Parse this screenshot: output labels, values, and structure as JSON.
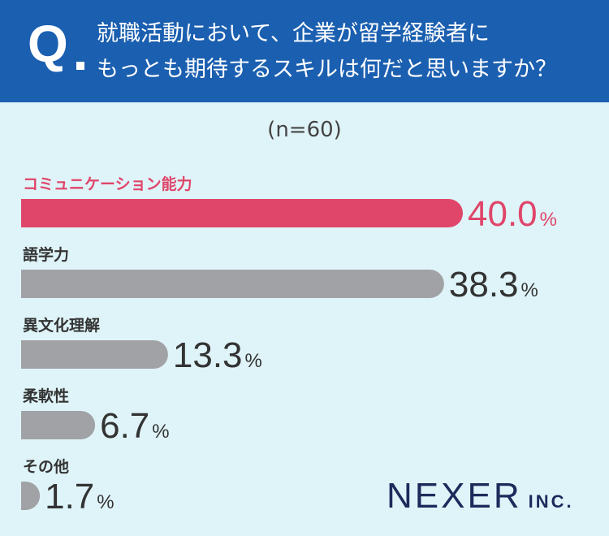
{
  "header": {
    "q_mark": "Q",
    "question_line1": "就職活動において、企業が留学経験者に",
    "question_line2": "もっとも期待するスキルは何だと思いますか？"
  },
  "sample_label": "(n=60)",
  "logo": {
    "main": "NEXER",
    "sub": "INC."
  },
  "colors": {
    "header": "#1b5fb0",
    "highlight": "#e0456a",
    "bar": "#a0a2a6",
    "background": "#dff4f8"
  },
  "chart_data": {
    "type": "bar",
    "orientation": "horizontal",
    "categories": [
      "コミュニケーション能力",
      "語学力",
      "異文化理解",
      "柔軟性",
      "その他"
    ],
    "values": [
      40.0,
      38.3,
      13.3,
      6.7,
      1.7
    ],
    "value_labels": [
      "40.0",
      "38.3",
      "13.3",
      "6.7",
      "1.7"
    ],
    "unit": "%",
    "highlight_index": 0
  }
}
